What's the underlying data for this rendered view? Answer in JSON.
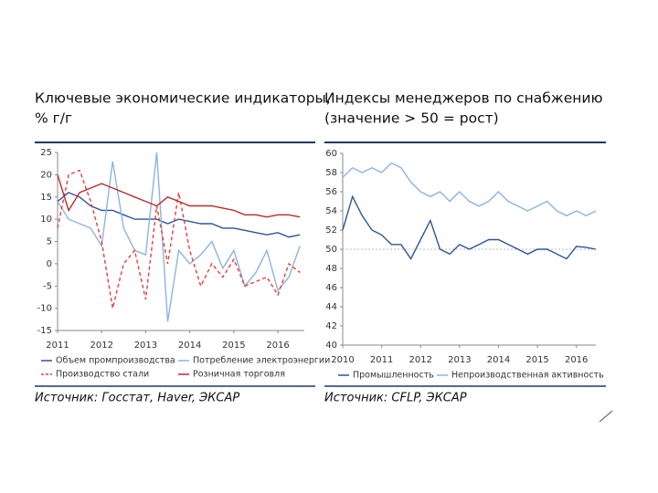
{
  "chart_data": [
    {
      "type": "line",
      "title": [
        "Ключевые экономические индикаторы,",
        "% г/г"
      ],
      "source": "Источник: Госстат, Haver, ЭКСАР",
      "xlim": [
        2011,
        2016.6
      ],
      "xticks": [
        2011,
        2012,
        2013,
        2014,
        2015,
        2016
      ],
      "ylim": [
        -15,
        25
      ],
      "yticks": [
        -15,
        -10,
        -5,
        0,
        5,
        10,
        15,
        20,
        25
      ],
      "x": [
        2011,
        2011.25,
        2011.5,
        2011.75,
        2012,
        2012.25,
        2012.5,
        2012.75,
        2013,
        2013.25,
        2013.5,
        2013.75,
        2014,
        2014.25,
        2014.5,
        2014.75,
        2015,
        2015.25,
        2015.5,
        2015.75,
        2016,
        2016.25,
        2016.5
      ],
      "series": [
        {
          "name": "Объем промпроизводства",
          "color": "#2e5597",
          "dash": false,
          "values": [
            14,
            16,
            15,
            13,
            12,
            12,
            11,
            10,
            10,
            10,
            9,
            10,
            9.5,
            9,
            9,
            8,
            8,
            7.5,
            7,
            6.5,
            7,
            6,
            6.5
          ]
        },
        {
          "name": "Потребление электроэнергии",
          "color": "#8db3e2",
          "dash": false,
          "values": [
            14,
            10,
            9,
            8,
            4,
            23,
            8,
            3,
            2,
            25,
            -13,
            3,
            0,
            2,
            5,
            -1,
            3,
            -5,
            -2,
            3,
            -6,
            -3,
            4
          ]
        },
        {
          "name": "Производство стали",
          "color": "#e0413a",
          "dash": true,
          "values": [
            8,
            20,
            21,
            14,
            5,
            -10,
            0,
            3,
            -8,
            13,
            0,
            16,
            3,
            -5,
            0,
            -3,
            1,
            -5,
            -4,
            -3,
            -7,
            0,
            -2
          ]
        },
        {
          "name": "Розничная торговля",
          "color": "#c0262c",
          "dash": false,
          "values": [
            20,
            12,
            16,
            17,
            18,
            17,
            16,
            15,
            14,
            13,
            15,
            14,
            13,
            13,
            13,
            12.5,
            12,
            11,
            11,
            10.5,
            11,
            11,
            10.5
          ]
        }
      ]
    },
    {
      "type": "line",
      "title": [
        "Индексы менеджеров по снабжению",
        "(значение > 50 = рост)"
      ],
      "source": "Источник: CFLP, ЭКСАР",
      "xlim": [
        2010,
        2016.5
      ],
      "xticks": [
        2010,
        2011,
        2012,
        2013,
        2014,
        2015,
        2016
      ],
      "ylim": [
        40,
        60
      ],
      "yticks": [
        40,
        42,
        44,
        46,
        48,
        50,
        52,
        54,
        56,
        58,
        60
      ],
      "hline": 50,
      "x": [
        2010,
        2010.25,
        2010.5,
        2010.75,
        2011,
        2011.25,
        2011.5,
        2011.75,
        2012,
        2012.25,
        2012.5,
        2012.75,
        2013,
        2013.25,
        2013.5,
        2013.75,
        2014,
        2014.25,
        2014.5,
        2014.75,
        2015,
        2015.25,
        2015.5,
        2015.75,
        2016,
        2016.25,
        2016.5
      ],
      "series": [
        {
          "name": "Промышленность",
          "color": "#2e5597",
          "dash": false,
          "values": [
            52,
            55.5,
            53.5,
            52,
            51.5,
            50.5,
            50.5,
            49,
            51,
            53,
            50,
            49.5,
            50.5,
            50,
            50.5,
            51,
            51,
            50.5,
            50,
            49.5,
            50,
            50,
            49.5,
            49,
            50.3,
            50.2,
            50
          ]
        },
        {
          "name": "Непроизводственная активность",
          "color": "#8db3e2",
          "dash": false,
          "values": [
            57.5,
            58.5,
            58,
            58.5,
            58,
            59,
            58.5,
            57,
            56,
            55.5,
            56,
            55,
            56,
            55,
            54.5,
            55,
            56,
            55,
            54.5,
            54,
            54.5,
            55,
            54,
            53.5,
            54,
            53.5,
            54
          ]
        }
      ]
    }
  ]
}
